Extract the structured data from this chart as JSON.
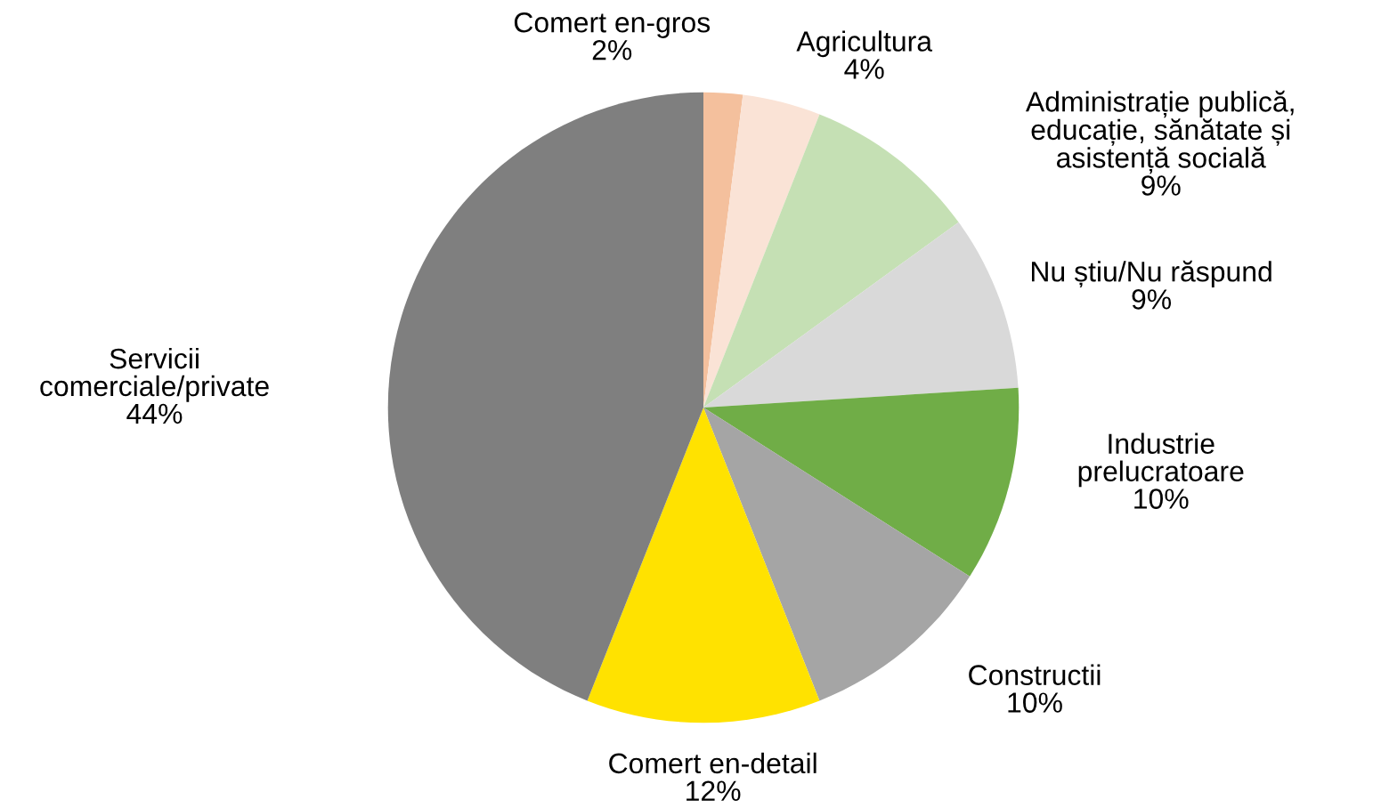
{
  "chart_data": {
    "type": "pie",
    "categories": [
      "Comert en-gros",
      "Agricultura",
      "Administrație publică,\neducație, sănătate și\nasistență socială",
      "Nu știu/Nu răspund",
      "Industrie\nprelucratoare",
      "Constructii",
      "Comert en-detail",
      "Servicii\ncomerciale/private"
    ],
    "values": [
      2,
      4,
      9,
      9,
      10,
      10,
      12,
      44
    ],
    "value_labels": [
      "2%",
      "4%",
      "9%",
      "9%",
      "10%",
      "10%",
      "12%",
      "44%"
    ],
    "colors": [
      "#f4c09d",
      "#fae3d6",
      "#c5e0b4",
      "#d9d9d9",
      "#70ad47",
      "#a5a5a5",
      "#ffe200",
      "#7f7f7f"
    ]
  }
}
